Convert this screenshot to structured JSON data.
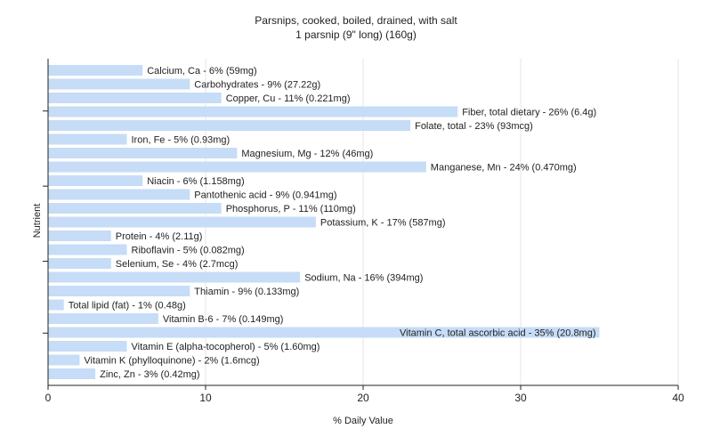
{
  "chart_data": {
    "type": "bar",
    "orientation": "horizontal",
    "title": "Parsnips, cooked, boiled, drained, with salt",
    "subtitle": "1 parsnip (9\" long) (160g)",
    "xlabel": "% Daily Value",
    "ylabel": "Nutrient",
    "xlim": [
      0,
      40
    ],
    "xticks": [
      "0",
      "10",
      "20",
      "30",
      "40"
    ],
    "grid": true,
    "bar_color": "#c6dcf7",
    "categories": [
      "Calcium, Ca - 6% (59mg)",
      "Carbohydrates - 9% (27.22g)",
      "Copper, Cu - 11% (0.221mg)",
      "Fiber, total dietary - 26% (6.4g)",
      "Folate, total - 23% (93mcg)",
      "Iron, Fe - 5% (0.93mg)",
      "Magnesium, Mg - 12% (46mg)",
      "Manganese, Mn - 24% (0.470mg)",
      "Niacin - 6% (1.158mg)",
      "Pantothenic acid - 9% (0.941mg)",
      "Phosphorus, P - 11% (110mg)",
      "Potassium, K - 17% (587mg)",
      "Protein - 4% (2.11g)",
      "Riboflavin - 5% (0.082mg)",
      "Selenium, Se - 4% (2.7mcg)",
      "Sodium, Na - 16% (394mg)",
      "Thiamin - 9% (0.133mg)",
      "Total lipid (fat) - 1% (0.48g)",
      "Vitamin B-6 - 7% (0.149mg)",
      "Vitamin C, total ascorbic acid - 35% (20.8mg)",
      "Vitamin E (alpha-tocopherol) - 5% (1.60mg)",
      "Vitamin K (phylloquinone) - 2% (1.6mcg)",
      "Zinc, Zn - 3% (0.42mg)"
    ],
    "values": [
      6,
      9,
      11,
      26,
      23,
      5,
      12,
      24,
      6,
      9,
      11,
      17,
      4,
      5,
      4,
      16,
      9,
      1,
      7,
      35,
      5,
      2,
      3
    ]
  }
}
